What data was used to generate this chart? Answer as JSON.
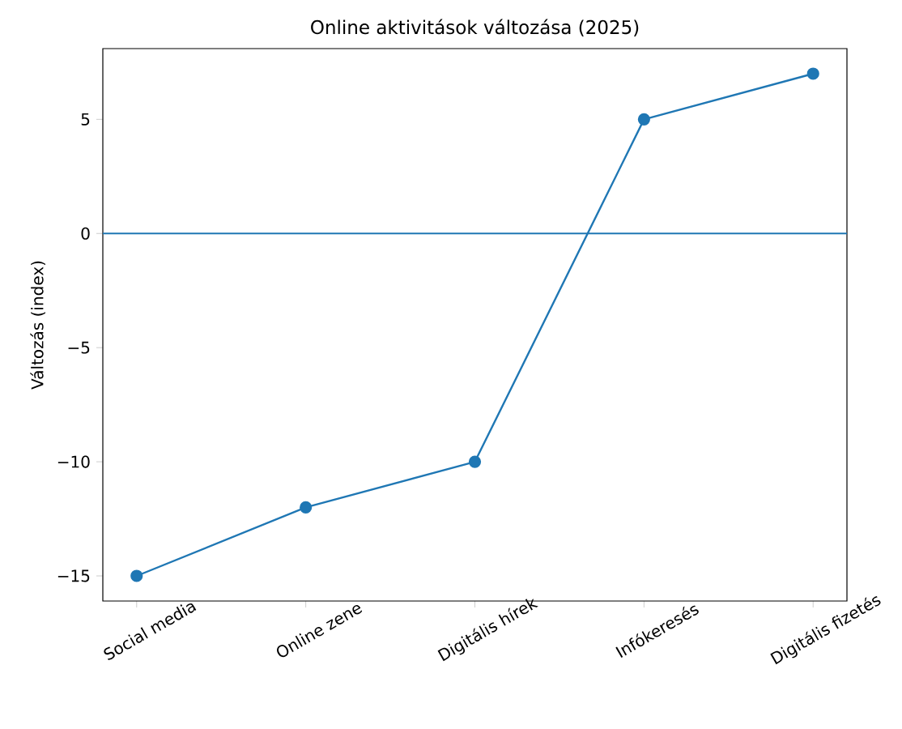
{
  "chart_data": {
    "type": "line",
    "title": "Online aktivitások változása (2025)",
    "ylabel": "Változás (index)",
    "categories": [
      "Social media",
      "Online zene",
      "Digitális hírek",
      "Infókeresés",
      "Digitális fizetés"
    ],
    "series": [
      {
        "color": "#1f77b4",
        "values": [
          -15,
          -12,
          -10,
          5,
          7
        ]
      }
    ],
    "ylim": [
      -16.1,
      8.1
    ],
    "yticks": [
      {
        "value": -15,
        "label": "−15"
      },
      {
        "value": -10,
        "label": "−10"
      },
      {
        "value": -5,
        "label": "−5"
      },
      0,
      5
    ],
    "ref_lines": [
      {
        "axis": "y",
        "value": 0,
        "color": "#1f77b4"
      }
    ],
    "marker": "circle",
    "line_style": "solid"
  }
}
